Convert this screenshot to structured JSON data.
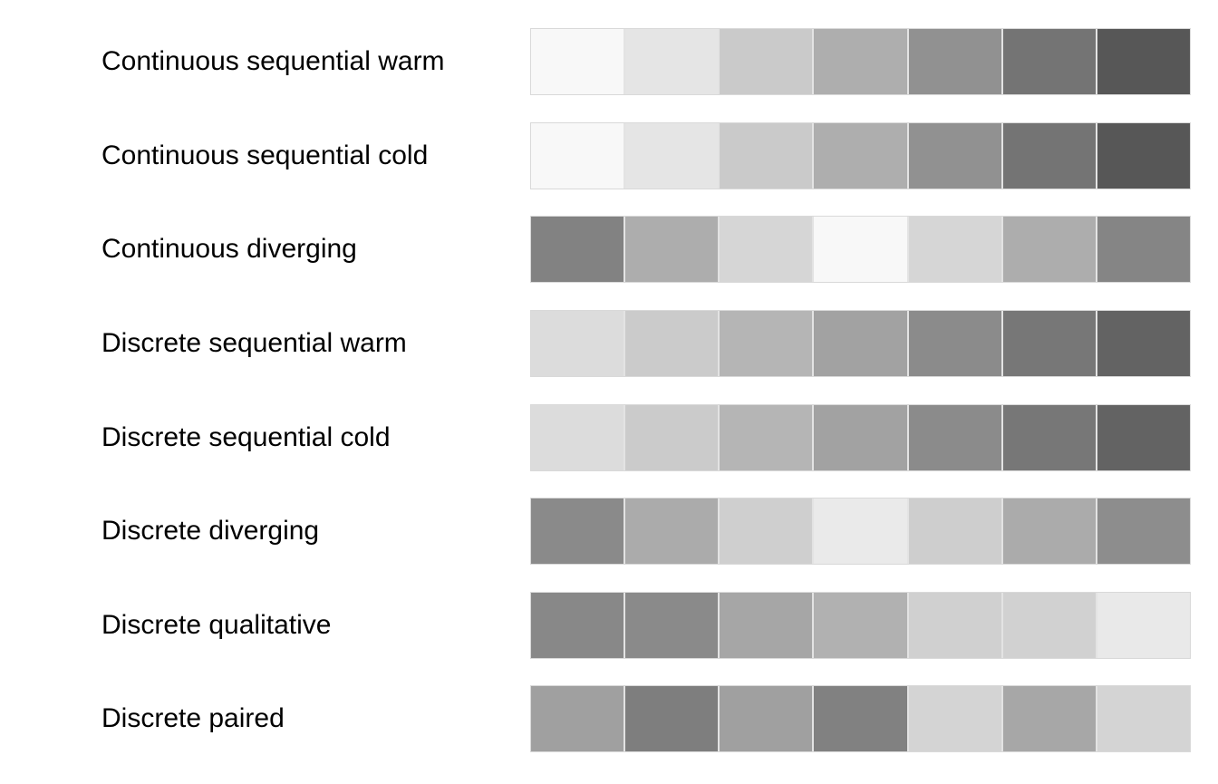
{
  "palettes": [
    {
      "name": "Continuous sequential warm",
      "colors": [
        "#f8f8f8",
        "#e5e5e5",
        "#cacaca",
        "#aeaeae",
        "#919191",
        "#747474",
        "#575757"
      ]
    },
    {
      "name": "Continuous sequential cold",
      "colors": [
        "#f8f8f8",
        "#e5e5e5",
        "#cacaca",
        "#aeaeae",
        "#919191",
        "#747474",
        "#575757"
      ]
    },
    {
      "name": "Continuous diverging",
      "colors": [
        "#828282",
        "#adadad",
        "#d6d6d6",
        "#f8f8f8",
        "#d6d6d6",
        "#adadad",
        "#858585"
      ]
    },
    {
      "name": "Discrete sequential warm",
      "colors": [
        "#dcdcdc",
        "#cbcbcb",
        "#b5b5b5",
        "#a2a2a2",
        "#8b8b8b",
        "#777777",
        "#636363"
      ]
    },
    {
      "name": "Discrete sequential cold",
      "colors": [
        "#dcdcdc",
        "#cbcbcb",
        "#b5b5b5",
        "#a2a2a2",
        "#8b8b8b",
        "#777777",
        "#636363"
      ]
    },
    {
      "name": "Discrete diverging",
      "colors": [
        "#8a8a8a",
        "#ababab",
        "#cfcfcf",
        "#eaeaea",
        "#cecece",
        "#ababab",
        "#8d8d8d"
      ]
    },
    {
      "name": "Discrete qualitative",
      "colors": [
        "#888888",
        "#8a8a8a",
        "#a6a6a6",
        "#b1b1b1",
        "#d0d0d0",
        "#d1d1d1",
        "#e9e9e9"
      ]
    },
    {
      "name": "Discrete paired",
      "colors": [
        "#a0a0a0",
        "#7e7e7e",
        "#a0a0a0",
        "#818181",
        "#d4d4d4",
        "#a7a7a7",
        "#d4d4d4"
      ]
    }
  ]
}
